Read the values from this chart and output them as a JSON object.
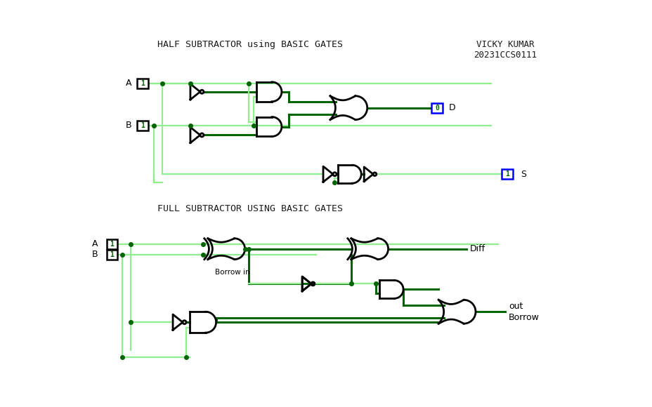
{
  "title_half": "HALF SUBTRACTOR using BASIC GATES",
  "title_full": "FULL SUBTRACTOR USING BASIC GATES",
  "author_line1": "VICKY KUMAR",
  "author_line2": "20231CCS0111",
  "bg_color": "#ffffff",
  "dark_green": "#006400",
  "light_green": "#90EE90",
  "blue": "#0000FF",
  "black": "#000000",
  "text_color": "#1a1a1a"
}
